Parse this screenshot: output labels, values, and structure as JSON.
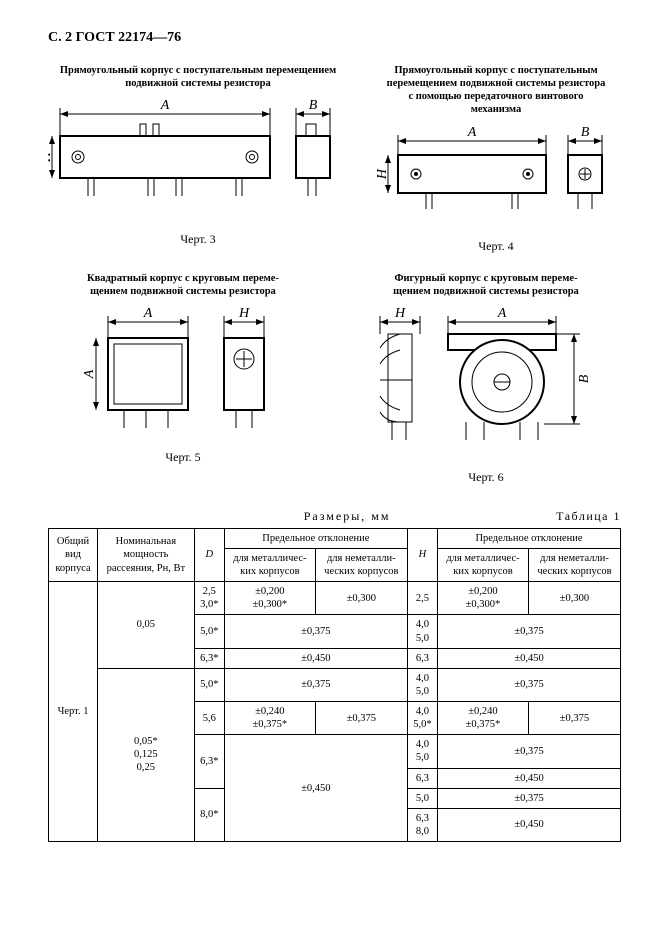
{
  "header": "С. 2 ГОСТ 22174—76",
  "figures": {
    "f3": {
      "title": "Прямоугольный корпус с поступательным перемещением\nподвижной системы резистора",
      "label": "Черт. 3",
      "dimA": "A",
      "dimB": "B",
      "dimH": "H"
    },
    "f4": {
      "title": "Прямоугольный корпус с поступательным\nперемещением подвижной системы резистора\nс помощью передаточного винтового\nмеханизма",
      "label": "Черт. 4",
      "dimA": "A",
      "dimB": "B",
      "dimH": "H"
    },
    "f5": {
      "title": "Квадратный корпус с круговым переме-\nщением подвижной системы резистора",
      "label": "Черт. 5",
      "dimA": "A",
      "dimH": "H"
    },
    "f6": {
      "title": "Фигурный корпус с круговым переме-\nщением подвижной системы резистора",
      "label": "Черт. 6",
      "dimA": "A",
      "dimB": "B",
      "dimH": "H"
    }
  },
  "tableHeader": {
    "caption": "Размеры, мм",
    "label": "Таблица 1"
  },
  "cols": {
    "c1": "Общий\nвид\nкорпуса",
    "c2": "Номинальная\nмощность\nрассеяния, Pн, Вт",
    "c3": "D",
    "c4": "Предельное отклонение",
    "c5": "для металличес-\nких корпусов",
    "c6": "для неметалли-\nческих корпусов",
    "c7": "H",
    "c8": "Предельное отклонение",
    "c9": "для металличес-\nких корпусов",
    "c10": "для неметалли-\nческих корпусов"
  },
  "rows": {
    "vid": "Черт. 1",
    "p1": "0,05",
    "p2": "0,05*\n0,125\n0,25",
    "d1": "2,5\n3,0*",
    "dev1a": "±0,200\n±0,300*",
    "dev1b": "±0,300",
    "h1": "2,5",
    "hdev1a": "±0,200\n±0,300*",
    "hdev1b": "±0,300",
    "d2": "5,0*",
    "dev2": "±0,375",
    "h2": "4,0\n5,0",
    "hdev2": "±0,375",
    "d3": "6,3*",
    "dev3": "±0,450",
    "h3": "6,3",
    "hdev3": "±0,450",
    "d4": "5,0*",
    "dev4": "±0,375",
    "h4": "4,0\n5,0",
    "hdev4": "±0,375",
    "d5": "5,6",
    "dev5a": "±0,240\n±0,375*",
    "dev5b": "±0,375",
    "h5": "4,0\n5,0*",
    "hdev5a": "±0,240\n±0,375*",
    "hdev5b": "±0,375",
    "d6": "6,3*",
    "dev6": "±0,450",
    "h6a": "4,0\n5,0",
    "hdev6a": "±0,375",
    "h6b": "6,3",
    "hdev6b": "±0,450",
    "d7": "8,0*",
    "h7a": "5,0",
    "hdev7a": "±0,375",
    "h7b": "6,3\n8,0",
    "hdev7b": "±0,450"
  }
}
